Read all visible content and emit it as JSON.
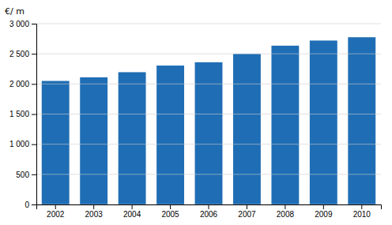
{
  "chart_data": {
    "type": "bar",
    "ylabel": "€/ m",
    "categories": [
      "2002",
      "2003",
      "2004",
      "2005",
      "2006",
      "2007",
      "2008",
      "2009",
      "2010"
    ],
    "values": [
      2050,
      2110,
      2195,
      2305,
      2360,
      2500,
      2635,
      2720,
      2775
    ],
    "color": "#1F6EB5",
    "ylim": [
      0,
      3000
    ],
    "yticks": [
      0,
      500,
      {
        "value": 1000,
        "label": "1 000"
      },
      {
        "value": 1500,
        "label": "1 500"
      },
      {
        "value": 2000,
        "label": "2 000"
      },
      {
        "value": 2500,
        "label": "2 500"
      },
      {
        "value": 3000,
        "label": "3 000"
      }
    ],
    "grid": true
  }
}
